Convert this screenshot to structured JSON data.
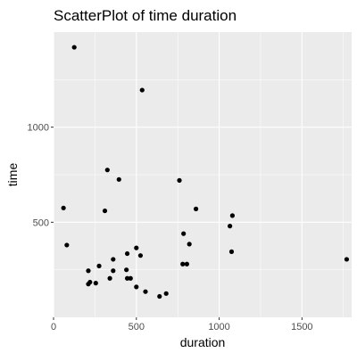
{
  "chart_data": {
    "type": "scatter",
    "title": "ScatterPlot of time duration",
    "xlabel": "duration",
    "ylabel": "time",
    "xlim": [
      0,
      1800
    ],
    "ylim": [
      0,
      1500
    ],
    "x_ticks": [
      0,
      500,
      1000,
      1500
    ],
    "y_ticks": [
      500,
      1000
    ],
    "grid": true,
    "colors": {
      "panel": "#ebebeb",
      "grid": "#ffffff",
      "point": "#000000",
      "tick_text": "#4d4d4d"
    },
    "points": [
      {
        "x": 125,
        "y": 1420
      },
      {
        "x": 535,
        "y": 1195
      },
      {
        "x": 325,
        "y": 775
      },
      {
        "x": 395,
        "y": 725
      },
      {
        "x": 760,
        "y": 720
      },
      {
        "x": 60,
        "y": 575
      },
      {
        "x": 310,
        "y": 560
      },
      {
        "x": 860,
        "y": 570
      },
      {
        "x": 1080,
        "y": 535
      },
      {
        "x": 1065,
        "y": 480
      },
      {
        "x": 785,
        "y": 440
      },
      {
        "x": 80,
        "y": 380
      },
      {
        "x": 820,
        "y": 385
      },
      {
        "x": 500,
        "y": 365
      },
      {
        "x": 445,
        "y": 335
      },
      {
        "x": 525,
        "y": 325
      },
      {
        "x": 1075,
        "y": 345
      },
      {
        "x": 360,
        "y": 305
      },
      {
        "x": 1770,
        "y": 305
      },
      {
        "x": 275,
        "y": 270
      },
      {
        "x": 780,
        "y": 280
      },
      {
        "x": 805,
        "y": 280
      },
      {
        "x": 210,
        "y": 245
      },
      {
        "x": 360,
        "y": 245
      },
      {
        "x": 440,
        "y": 250
      },
      {
        "x": 340,
        "y": 205
      },
      {
        "x": 445,
        "y": 205
      },
      {
        "x": 465,
        "y": 205
      },
      {
        "x": 220,
        "y": 185
      },
      {
        "x": 210,
        "y": 175
      },
      {
        "x": 255,
        "y": 180
      },
      {
        "x": 500,
        "y": 160
      },
      {
        "x": 555,
        "y": 135
      },
      {
        "x": 680,
        "y": 125
      },
      {
        "x": 640,
        "y": 110
      }
    ]
  }
}
